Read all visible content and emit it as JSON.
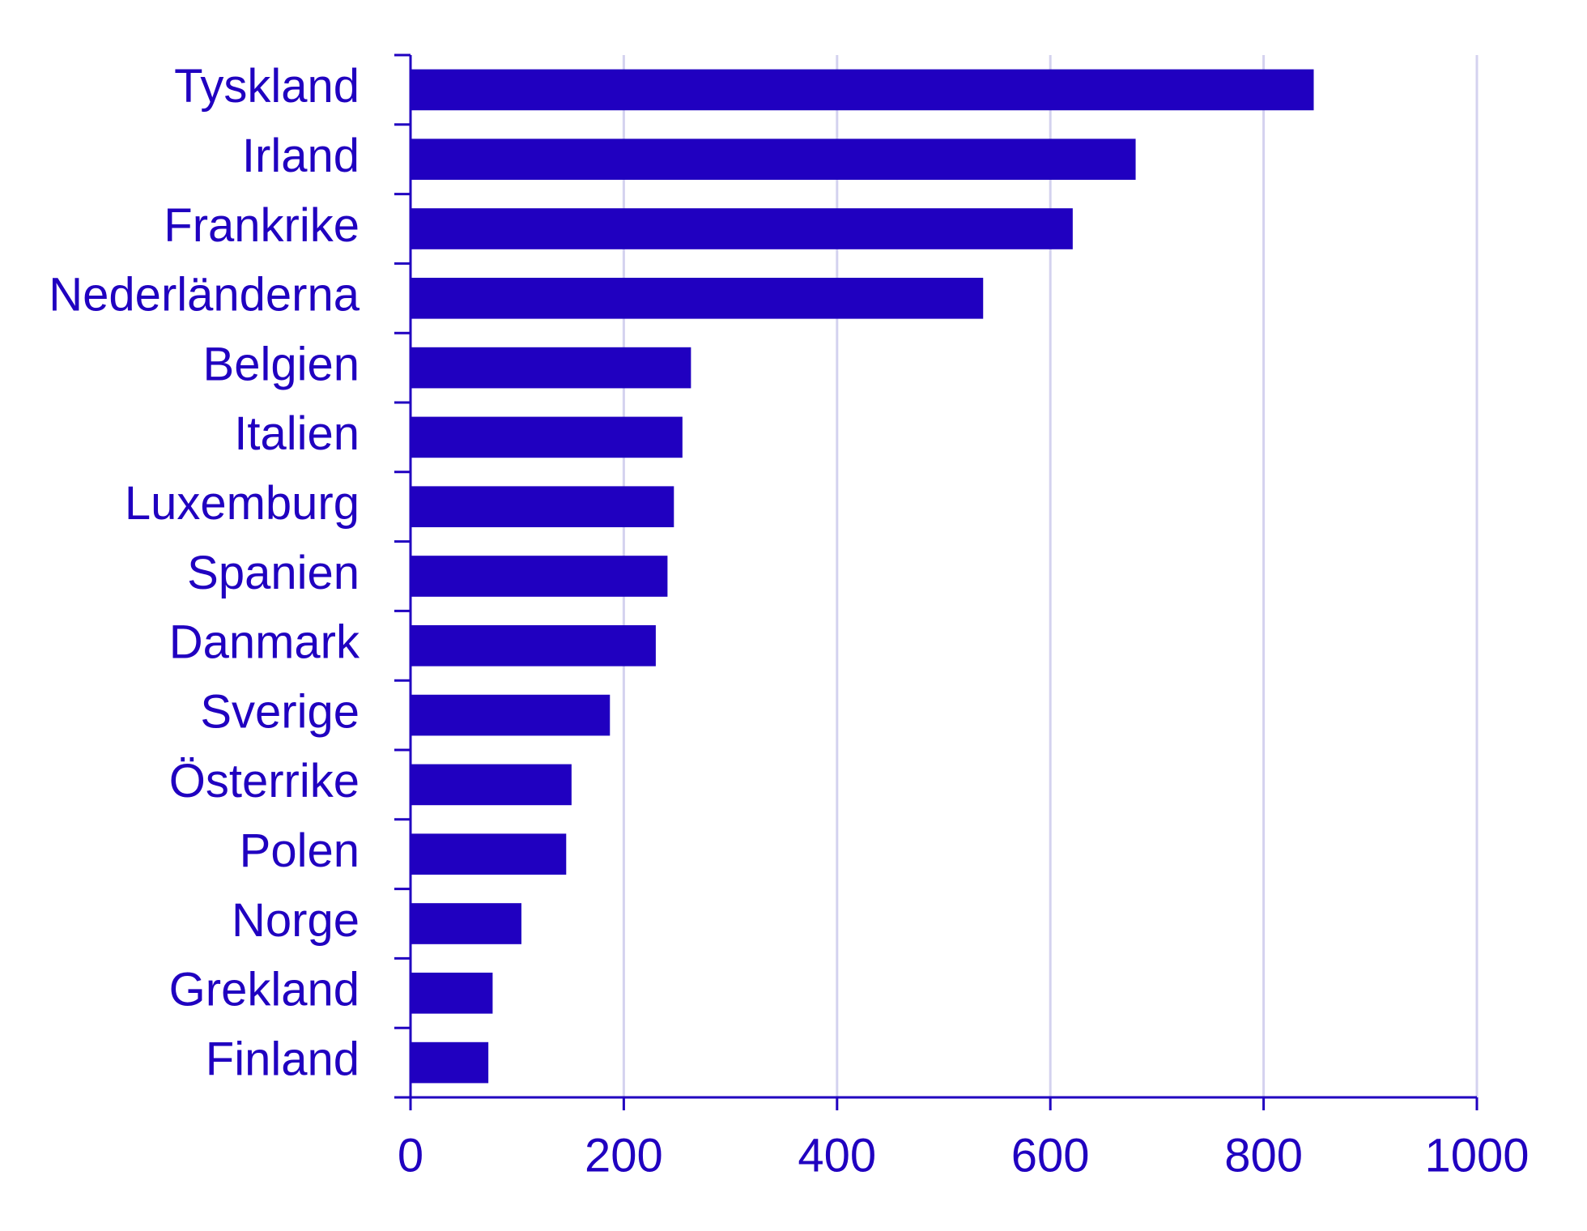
{
  "colors": {
    "bar": "#2000c0",
    "axis": "#2000c0",
    "grid": "#d4d2ef",
    "text": "#2000c0"
  },
  "chart_data": {
    "type": "bar",
    "orientation": "horizontal",
    "title": "",
    "xlabel": "",
    "ylabel": "",
    "categories": [
      "Tyskland",
      "Irland",
      "Frankrike",
      "Nederländerna",
      "Belgien",
      "Italien",
      "Luxemburg",
      "Spanien",
      "Danmark",
      "Sverige",
      "Österrike",
      "Polen",
      "Norge",
      "Grekland",
      "Finland"
    ],
    "values": [
      847,
      680,
      621,
      537,
      263,
      255,
      247,
      241,
      230,
      187,
      151,
      146,
      104,
      77,
      73
    ],
    "xlim": [
      0,
      1000
    ],
    "xticks": [
      0,
      200,
      400,
      600,
      800,
      1000
    ],
    "xtick_labels": [
      "0",
      "200",
      "400",
      "600",
      "800",
      "1000"
    ],
    "grid": "vertical",
    "legend": "none"
  }
}
